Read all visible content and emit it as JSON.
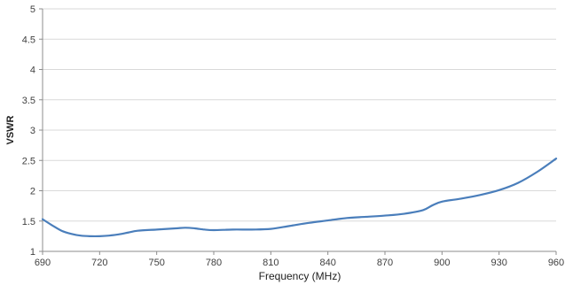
{
  "chart_data": {
    "type": "line",
    "xlabel": "Frequency (MHz)",
    "ylabel": "VSWR",
    "xlim": [
      690,
      960
    ],
    "ylim": [
      1,
      5
    ],
    "xticks": [
      690,
      720,
      750,
      780,
      810,
      840,
      870,
      900,
      930,
      960
    ],
    "xtick_labels": [
      "690",
      "720",
      "750",
      "780",
      "810",
      "840",
      "870",
      "900",
      "930",
      "960"
    ],
    "yticks": [
      1,
      1.5,
      2,
      2.5,
      3,
      3.5,
      4,
      4.5,
      5
    ],
    "ytick_labels": [
      "1",
      "1.5",
      "2",
      "2.5",
      "3",
      "3.5",
      "4",
      "4.5",
      "5"
    ],
    "grid": "horizontal",
    "series": [
      {
        "color": "#4a7ebb",
        "x": [
          690,
          695,
          700,
          705,
          710,
          715,
          720,
          725,
          730,
          735,
          740,
          750,
          760,
          765,
          770,
          775,
          780,
          790,
          800,
          810,
          820,
          830,
          840,
          850,
          860,
          870,
          880,
          890,
          895,
          900,
          910,
          920,
          930,
          940,
          950,
          960
        ],
        "y": [
          1.53,
          1.43,
          1.34,
          1.29,
          1.26,
          1.25,
          1.25,
          1.26,
          1.28,
          1.31,
          1.34,
          1.36,
          1.38,
          1.39,
          1.38,
          1.36,
          1.35,
          1.36,
          1.36,
          1.37,
          1.42,
          1.47,
          1.51,
          1.55,
          1.57,
          1.59,
          1.62,
          1.68,
          1.76,
          1.82,
          1.87,
          1.93,
          2.01,
          2.13,
          2.31,
          2.53
        ]
      }
    ]
  }
}
